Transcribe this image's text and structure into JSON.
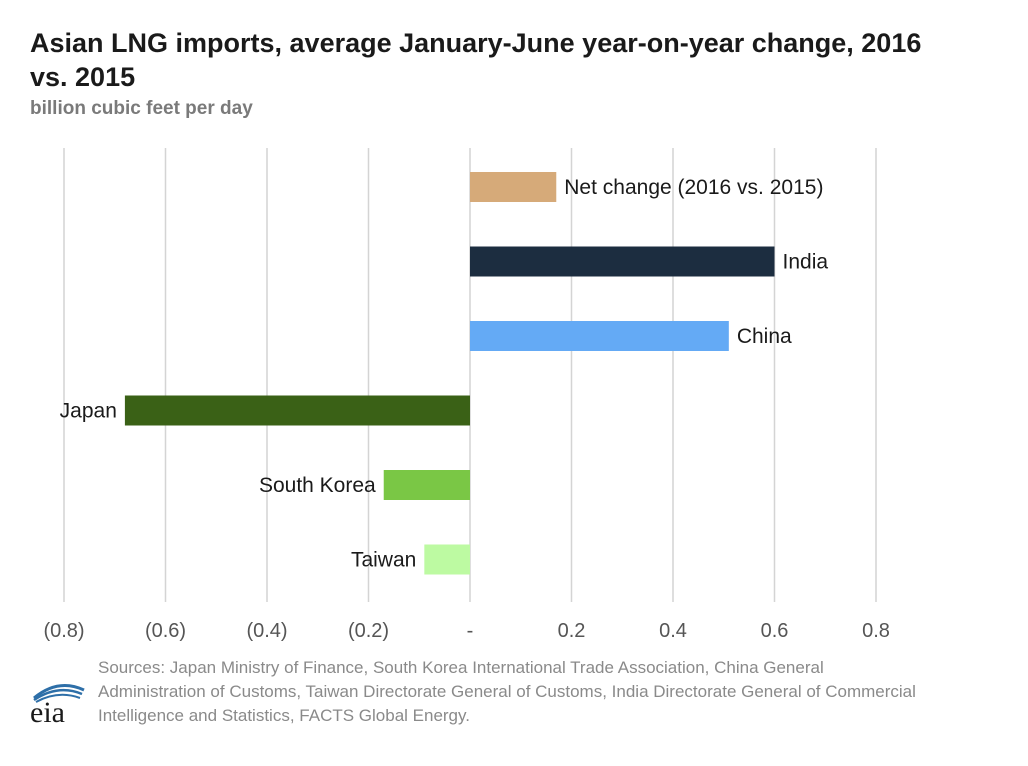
{
  "title": "Asian LNG imports, average January-June year-on-year change, 2016 vs. 2015",
  "subtitle": "billion cubic feet per day",
  "sources": "Sources: Japan Ministry of Finance, South Korea International Trade Association, China General Administration of Customs, Taiwan Directorate General of Customs, India Directorate General of Commercial Intelligence and Statistics, FACTS Global Energy.",
  "logo_text": "eia",
  "chart_data": {
    "type": "bar",
    "orientation": "horizontal",
    "xlim": [
      -0.8,
      0.8
    ],
    "grid": true,
    "legend": "none",
    "ticks": [
      {
        "value": -0.8,
        "label": "(0.8)"
      },
      {
        "value": -0.6,
        "label": "(0.6)"
      },
      {
        "value": -0.4,
        "label": "(0.4)"
      },
      {
        "value": -0.2,
        "label": "(0.2)"
      },
      {
        "value": 0,
        "label": "-"
      },
      {
        "value": 0.2,
        "label": "0.2"
      },
      {
        "value": 0.4,
        "label": "0.4"
      },
      {
        "value": 0.6,
        "label": "0.6"
      },
      {
        "value": 0.8,
        "label": "0.8"
      }
    ],
    "categories": [
      "Net change (2016 vs. 2015)",
      "India",
      "China",
      "Japan",
      "South Korea",
      "Taiwan"
    ],
    "values": [
      0.17,
      0.6,
      0.51,
      -0.68,
      -0.17,
      -0.09
    ],
    "colors": [
      "#d6aa79",
      "#1c2d40",
      "#64aaf5",
      "#3a6116",
      "#7ac745",
      "#bdfaa2"
    ]
  }
}
